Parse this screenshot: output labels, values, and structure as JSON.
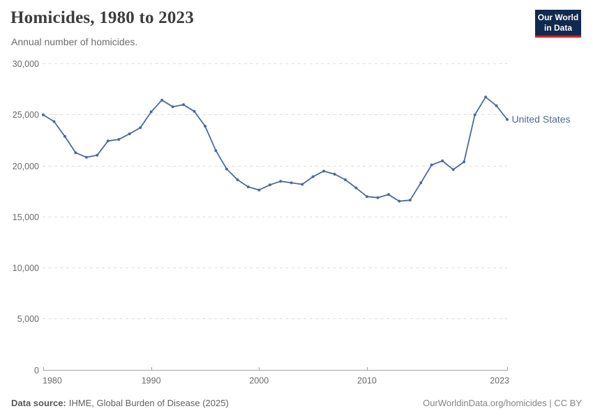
{
  "chart_data": {
    "type": "line",
    "title": "Homicides, 1980 to 2023",
    "subtitle": "Annual number of homicides.",
    "xlabel": "",
    "ylabel": "",
    "x": [
      1980,
      1981,
      1982,
      1983,
      1984,
      1985,
      1986,
      1987,
      1988,
      1989,
      1990,
      1991,
      1992,
      1993,
      1994,
      1995,
      1996,
      1997,
      1998,
      1999,
      2000,
      2001,
      2002,
      2003,
      2004,
      2005,
      2006,
      2007,
      2008,
      2009,
      2010,
      2011,
      2012,
      2013,
      2014,
      2015,
      2016,
      2017,
      2018,
      2019,
      2020,
      2021,
      2022,
      2023
    ],
    "series": [
      {
        "name": "United States",
        "color": "#4C6A9C",
        "values": [
          24950,
          24300,
          22850,
          21250,
          20800,
          21000,
          22400,
          22550,
          23100,
          23700,
          25250,
          26400,
          25750,
          25950,
          25300,
          23850,
          21450,
          19650,
          18600,
          17900,
          17600,
          18100,
          18450,
          18300,
          18150,
          18900,
          19450,
          19150,
          18600,
          17800,
          16950,
          16850,
          17150,
          16500,
          16600,
          18300,
          20050,
          20450,
          19600,
          20350,
          24950,
          26700,
          25850,
          24500
        ]
      }
    ],
    "ylim": [
      0,
      30000
    ],
    "ytick_interval": 5000,
    "yticks_labels": [
      "0",
      "5,000",
      "10,000",
      "15,000",
      "20,000",
      "25,000",
      "30,000"
    ],
    "xticks": [
      1980,
      1990,
      2000,
      2010,
      2023
    ],
    "grid": "horizontal-dashed",
    "legend": "series-label-at-line-end"
  },
  "logo": {
    "line1": "Our World",
    "line2": "in Data"
  },
  "footer": {
    "source_label": "Data source:",
    "source_text": "IHME, Global Burden of Disease (2025)",
    "credit": "OurWorldinData.org/homicides | CC BY"
  },
  "colors": {
    "line": "#4C6A9C",
    "logo_bg": "#12294e",
    "logo_accent": "#d8232a",
    "grid": "#dcdcdc",
    "axis": "#a3a3a3",
    "tick_label": "#6b6b6b",
    "title": "#3d3d3d",
    "subtitle": "#6e6e6e"
  }
}
